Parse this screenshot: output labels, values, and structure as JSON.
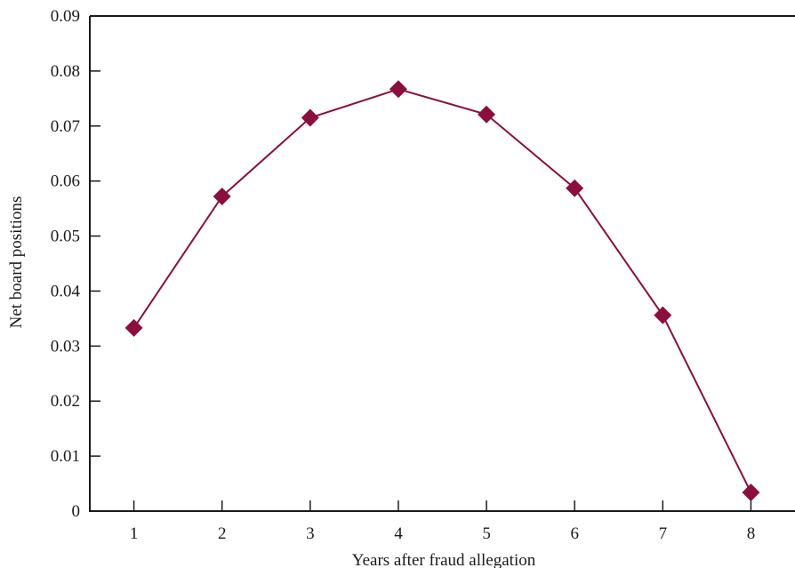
{
  "chart_data": {
    "type": "line",
    "title": "",
    "xlabel": "Years after fraud allegation",
    "ylabel": "Net board positions",
    "x": [
      1,
      2,
      3,
      4,
      5,
      6,
      7,
      8
    ],
    "series": [
      {
        "values": [
          0.0333,
          0.0572,
          0.0715,
          0.0767,
          0.0721,
          0.0587,
          0.0356,
          0.0034
        ]
      }
    ],
    "xticks": [
      "1",
      "2",
      "3",
      "4",
      "5",
      "6",
      "7",
      "8"
    ],
    "yticks": [
      "0",
      "0.01",
      "0.02",
      "0.03",
      "0.04",
      "0.05",
      "0.06",
      "0.07",
      "0.08",
      "0.09"
    ],
    "ylim": [
      0,
      0.09
    ],
    "xlim": [
      0.5,
      8.5
    ],
    "grid": false,
    "marker": "diamond",
    "color": "#8b0f3c"
  }
}
